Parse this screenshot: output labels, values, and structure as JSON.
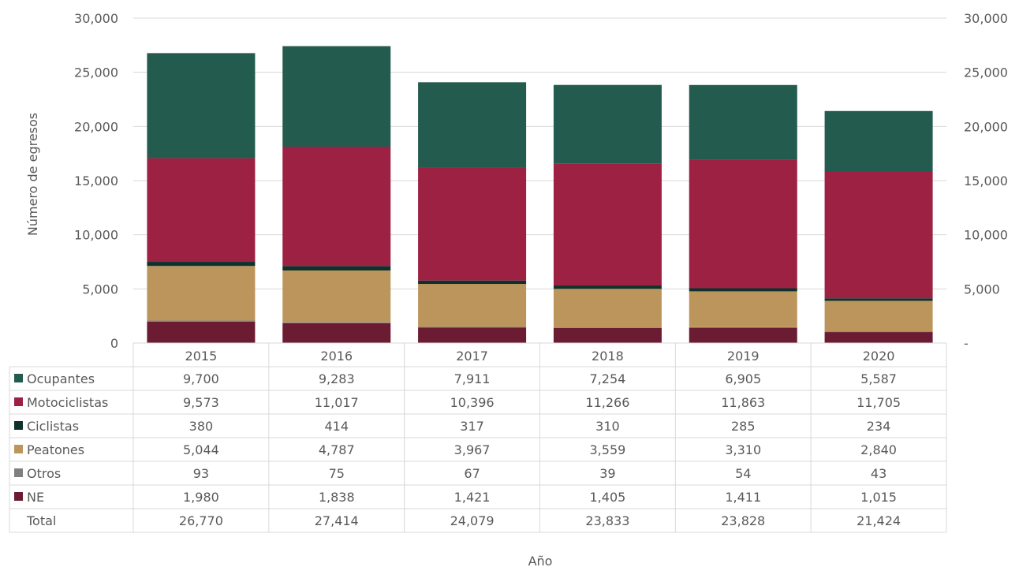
{
  "chart_data": {
    "type": "bar",
    "stacked": true,
    "categories": [
      "2015",
      "2016",
      "2017",
      "2018",
      "2019",
      "2020"
    ],
    "series": [
      {
        "name": "NE",
        "color": "#6b1c32",
        "values": [
          1980,
          1838,
          1421,
          1405,
          1411,
          1015
        ],
        "labels": [
          "1,980",
          "1,838",
          "1,421",
          "1,405",
          "1,411",
          "1,015"
        ]
      },
      {
        "name": "Otros",
        "color": "#7f7f7f",
        "values": [
          93,
          75,
          67,
          39,
          54,
          43
        ],
        "labels": [
          "93",
          "75",
          "67",
          "39",
          "54",
          "43"
        ]
      },
      {
        "name": "Peatones",
        "color": "#bc955c",
        "values": [
          5044,
          4787,
          3967,
          3559,
          3310,
          2840
        ],
        "labels": [
          "5,044",
          "4,787",
          "3,967",
          "3,559",
          "3,310",
          "2,840"
        ]
      },
      {
        "name": "Ciclistas",
        "color": "#10312b",
        "values": [
          380,
          414,
          317,
          310,
          285,
          234
        ],
        "labels": [
          "380",
          "414",
          "317",
          "310",
          "285",
          "234"
        ]
      },
      {
        "name": "Motociclistas",
        "color": "#9d2142",
        "values": [
          9573,
          11017,
          10396,
          11266,
          11863,
          11705
        ],
        "labels": [
          "9,573",
          "11,017",
          "10,396",
          "11,266",
          "11,863",
          "11,705"
        ]
      },
      {
        "name": "Ocupantes",
        "color": "#235b4e",
        "values": [
          9700,
          9283,
          7911,
          7254,
          6905,
          5587
        ],
        "labels": [
          "9,700",
          "9,283",
          "7,911",
          "7,254",
          "6,905",
          "5,587"
        ]
      }
    ],
    "table_order": [
      "Ocupantes",
      "Motociclistas",
      "Ciclistas",
      "Peatones",
      "Otros",
      "NE"
    ],
    "total": {
      "name": "Total",
      "values": [
        26770,
        27414,
        24079,
        23833,
        23828,
        21424
      ],
      "labels": [
        "26,770",
        "27,414",
        "24,079",
        "23,833",
        "23,828",
        "21,424"
      ]
    },
    "ylabel": "Número de egresos",
    "xlabel": "Año",
    "ylim": [
      0,
      30000
    ],
    "yticks": [
      0,
      5000,
      10000,
      15000,
      20000,
      25000,
      30000
    ],
    "ytick_labels_left": [
      "0",
      "5,000",
      "10,000",
      "15,000",
      "20,000",
      "25,000",
      "30,000"
    ],
    "ytick_labels_right": [
      "-",
      "5,000",
      "10,000",
      "15,000",
      "20,000",
      "25,000",
      "30,000"
    ],
    "grid": true,
    "legend": "data-table"
  }
}
